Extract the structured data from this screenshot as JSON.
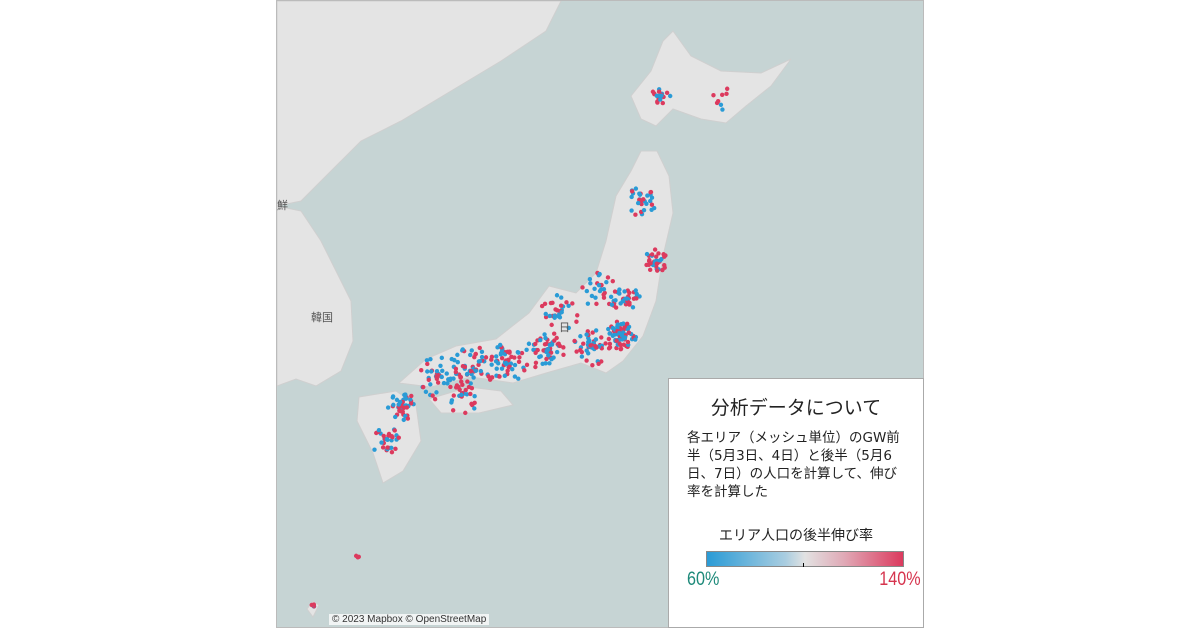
{
  "map": {
    "labels": {
      "korea_north": "鮮",
      "korea_south": "韓国",
      "japan": "日"
    },
    "attribution": "© 2023 Mapbox © OpenStreetMap",
    "colors": {
      "sea": "#c6d4d4",
      "land": "#e4e4e4",
      "low": "#2a9bd6",
      "high": "#dc3a5e"
    }
  },
  "panel": {
    "title": "分析データについて",
    "description": "各エリア（メッシュ単位）のGW前半（5月3日、4日）と後半（5月6日、7日）の人口を計算して、伸び率を計算した",
    "legend": {
      "title": "エリア人口の後半伸び率",
      "min_label": "60%",
      "max_label": "140%",
      "min": 60,
      "max": 140,
      "midpoint": 100
    }
  }
}
